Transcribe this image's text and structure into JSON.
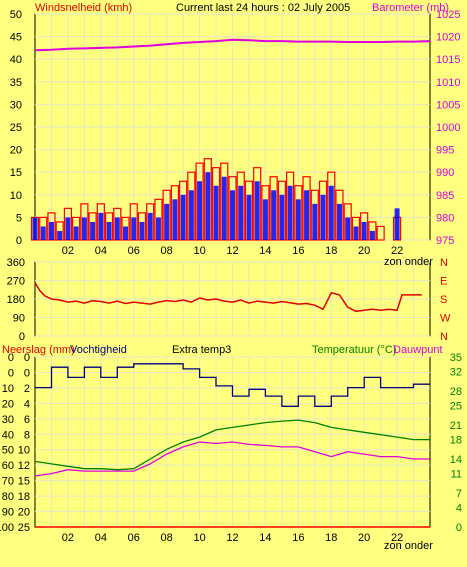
{
  "header": {
    "left_label": "Windsnelheid (kmh)",
    "center_label": "Current last 24 hours : 02 July 2005",
    "right_label": "Barometer (mb)"
  },
  "bottom_header": {
    "left_label": "Neerslag (mm)",
    "left_label2": "Vochtigheid",
    "center_label": "Extra temp3",
    "right_label": "Temperatuur (°C)",
    "right_label2": "Dauwpunt"
  },
  "x_annotation": "zon onder",
  "colors": {
    "background": "#ffff80",
    "grid": "#e6e6c8",
    "gust": "#ff0000",
    "avg_wind": "#0000ff",
    "barometer": "#e000e0",
    "wind_dir": "#e00000",
    "humidity": "#000080",
    "temperature": "#008000",
    "dewpoint": "#e000e0",
    "rain": "#ff0000",
    "label_red": "#e00000",
    "label_magenta": "#e000e0",
    "label_green": "#008000",
    "axis_text": "#000000"
  },
  "chart_data": [
    {
      "type": "line",
      "name": "wind",
      "x_ticks": [
        "02",
        "04",
        "06",
        "08",
        "10",
        "12",
        "14",
        "16",
        "18",
        "20",
        "22"
      ],
      "y_left_ticks": [
        "0",
        "5",
        "10",
        "15",
        "20",
        "25",
        "30",
        "35",
        "40",
        "45",
        "50"
      ],
      "y_right_ticks": [
        "975",
        "980",
        "985",
        "990",
        "995",
        "1000",
        "1005",
        "1010",
        "1015",
        "1020",
        "1025"
      ],
      "ylim_left": [
        0,
        50
      ],
      "ylim_right": [
        975,
        1025
      ],
      "xlim": [
        0,
        24
      ],
      "series": [
        {
          "name": "Windsnelheid (kmh)",
          "x": [
            0.0,
            0.5,
            1.0,
            1.5,
            2.0,
            2.5,
            3.0,
            3.5,
            4.0,
            4.5,
            5.0,
            5.5,
            6.0,
            6.5,
            7.0,
            7.5,
            8.0,
            8.5,
            9.0,
            9.5,
            10.0,
            10.5,
            11.0,
            11.5,
            12.0,
            12.5,
            13.0,
            13.5,
            14.0,
            14.5,
            15.0,
            15.5,
            16.0,
            16.5,
            17.0,
            17.5,
            18.0,
            18.5,
            19.0,
            19.5,
            20.0,
            20.5,
            21.0,
            21.5,
            22.0,
            22.5,
            23.0
          ],
          "values": [
            5,
            3,
            4,
            2,
            5,
            3,
            5,
            4,
            6,
            4,
            5,
            3,
            5,
            4,
            6,
            5,
            8,
            9,
            10,
            11,
            13,
            15,
            12,
            14,
            11,
            12,
            10,
            13,
            9,
            11,
            10,
            12,
            9,
            11,
            8,
            10,
            12,
            8,
            5,
            3,
            4,
            2,
            0,
            0,
            7,
            0,
            0
          ]
        },
        {
          "name": "Windvlaag",
          "x": [
            0.0,
            0.5,
            1.0,
            1.5,
            2.0,
            2.5,
            3.0,
            3.5,
            4.0,
            4.5,
            5.0,
            5.5,
            6.0,
            6.5,
            7.0,
            7.5,
            8.0,
            8.5,
            9.0,
            9.5,
            10.0,
            10.5,
            11.0,
            11.5,
            12.0,
            12.5,
            13.0,
            13.5,
            14.0,
            14.5,
            15.0,
            15.5,
            16.0,
            16.5,
            17.0,
            17.5,
            18.0,
            18.5,
            19.0,
            19.5,
            20.0,
            20.5,
            21.0,
            21.5,
            22.0,
            22.5,
            23.0
          ],
          "values": [
            5,
            5,
            6,
            4,
            7,
            5,
            8,
            6,
            8,
            6,
            7,
            5,
            8,
            6,
            8,
            9,
            11,
            12,
            13,
            15,
            17,
            18,
            16,
            17,
            14,
            15,
            13,
            16,
            12,
            14,
            13,
            15,
            12,
            14,
            11,
            13,
            15,
            11,
            8,
            5,
            6,
            4,
            3,
            0,
            5,
            0,
            0
          ]
        },
        {
          "name": "Barometer (mb)",
          "x": [
            0,
            1,
            2,
            3,
            4,
            5,
            6,
            7,
            8,
            9,
            10,
            11,
            12,
            13,
            14,
            15,
            16,
            17,
            18,
            19,
            20,
            21,
            22,
            23,
            24
          ],
          "values": [
            1017.0,
            1017.1,
            1017.3,
            1017.4,
            1017.5,
            1017.6,
            1017.8,
            1018.0,
            1018.3,
            1018.6,
            1018.8,
            1019.0,
            1019.3,
            1019.2,
            1019.0,
            1019.0,
            1018.9,
            1018.9,
            1018.9,
            1018.8,
            1018.8,
            1018.8,
            1018.9,
            1018.9,
            1019.0
          ]
        }
      ]
    },
    {
      "type": "line",
      "name": "wind_direction",
      "y_left_ticks": [
        "0",
        "90",
        "180",
        "270",
        "360"
      ],
      "y_right_ticks": [
        "N",
        "W",
        "S",
        "E",
        "N"
      ],
      "ylim": [
        0,
        360
      ],
      "xlim": [
        0,
        24
      ],
      "series": [
        {
          "name": "Windrichting",
          "x": [
            0.0,
            0.3,
            0.6,
            1.0,
            1.5,
            2.0,
            2.5,
            3.0,
            3.5,
            4.0,
            4.5,
            5.0,
            5.5,
            6.0,
            6.5,
            7.0,
            7.5,
            8.0,
            8.5,
            9.0,
            9.5,
            10.0,
            10.5,
            11.0,
            11.5,
            12.0,
            12.5,
            13.0,
            13.5,
            14.0,
            14.5,
            15.0,
            15.5,
            16.0,
            16.5,
            17.0,
            17.5,
            18.0,
            18.5,
            19.0,
            19.5,
            20.0,
            20.5,
            21.0,
            21.5,
            22.0,
            22.3,
            22.6,
            23.0,
            23.5
          ],
          "values": [
            260,
            220,
            195,
            180,
            175,
            165,
            170,
            160,
            172,
            168,
            160,
            170,
            158,
            165,
            160,
            155,
            165,
            172,
            168,
            175,
            165,
            185,
            175,
            180,
            170,
            165,
            175,
            160,
            170,
            165,
            160,
            168,
            162,
            155,
            158,
            150,
            130,
            210,
            200,
            140,
            120,
            125,
            130,
            125,
            130,
            125,
            200,
            200,
            200,
            200
          ]
        }
      ]
    },
    {
      "type": "line",
      "name": "humidity_temperature",
      "x_ticks": [
        "02",
        "04",
        "06",
        "08",
        "10",
        "12",
        "14",
        "16",
        "18",
        "20",
        "22"
      ],
      "y_left_ticks": [
        "0",
        "0",
        "10",
        "20",
        "30",
        "40",
        "50",
        "60",
        "70",
        "80",
        "90",
        "100"
      ],
      "y_left2_ticks": [
        "0",
        "0",
        "2",
        "4",
        "6",
        "8",
        "10",
        "12",
        "15",
        "18",
        "20",
        "25",
        "30"
      ],
      "y_right_ticks": [
        "0",
        "4",
        "7",
        "11",
        "14",
        "18",
        "21",
        "25",
        "28",
        "32",
        "35"
      ],
      "ylim_humidity": [
        0,
        100
      ],
      "ylim_temp": [
        0,
        35
      ],
      "xlim": [
        0,
        24
      ],
      "series": [
        {
          "name": "Vochtigheid",
          "x": [
            0,
            1,
            1.0,
            2,
            2.0,
            3,
            3.0,
            4,
            4.0,
            5,
            5.0,
            6,
            6.0,
            7,
            7.0,
            8,
            8.0,
            9,
            9.0,
            10,
            10.0,
            11,
            11.0,
            12,
            12.0,
            13,
            13.0,
            14,
            14.0,
            15,
            15.0,
            16,
            16.0,
            17,
            17.0,
            18,
            18.0,
            19,
            19.0,
            20,
            20.0,
            21,
            21.0,
            22,
            22.0,
            23,
            23.0,
            24
          ],
          "values": [
            82,
            82,
            94,
            94,
            88,
            88,
            94,
            94,
            88,
            88,
            94,
            94,
            96,
            96,
            96,
            96,
            96,
            96,
            93,
            93,
            88,
            88,
            83,
            83,
            77,
            77,
            81,
            81,
            77,
            77,
            71,
            71,
            77,
            77,
            71,
            71,
            77,
            77,
            82,
            82,
            88,
            88,
            82,
            82,
            82,
            82,
            84,
            84
          ]
        },
        {
          "name": "Temperatuur (°C)",
          "x": [
            0,
            1,
            2,
            3,
            4,
            5,
            6,
            7,
            8,
            9,
            10,
            11,
            12,
            13,
            14,
            15,
            16,
            17,
            18,
            19,
            20,
            21,
            22,
            23,
            24
          ],
          "values": [
            13.5,
            13.0,
            12.5,
            12.0,
            12.0,
            11.8,
            12.0,
            14.0,
            16.0,
            17.5,
            18.5,
            20.0,
            20.5,
            21.0,
            21.5,
            21.8,
            22.0,
            21.5,
            20.5,
            20.0,
            19.5,
            19.0,
            18.5,
            18.0,
            18.0
          ]
        },
        {
          "name": "Dauwpunt",
          "x": [
            0,
            1,
            2,
            3,
            4,
            5,
            6,
            7,
            8,
            9,
            10,
            11,
            12,
            13,
            14,
            15,
            16,
            17,
            18,
            19,
            20,
            21,
            22,
            23,
            24
          ],
          "values": [
            10.5,
            11.0,
            11.8,
            11.5,
            11.5,
            11.5,
            11.5,
            13.0,
            15.0,
            16.5,
            17.5,
            17.2,
            17.5,
            17.0,
            16.8,
            16.5,
            16.5,
            15.5,
            14.5,
            15.5,
            15.0,
            14.5,
            14.5,
            14.0,
            14.0
          ]
        },
        {
          "name": "Neerslag (mm)",
          "x": [
            0,
            24
          ],
          "values": [
            0,
            0
          ]
        }
      ]
    }
  ]
}
